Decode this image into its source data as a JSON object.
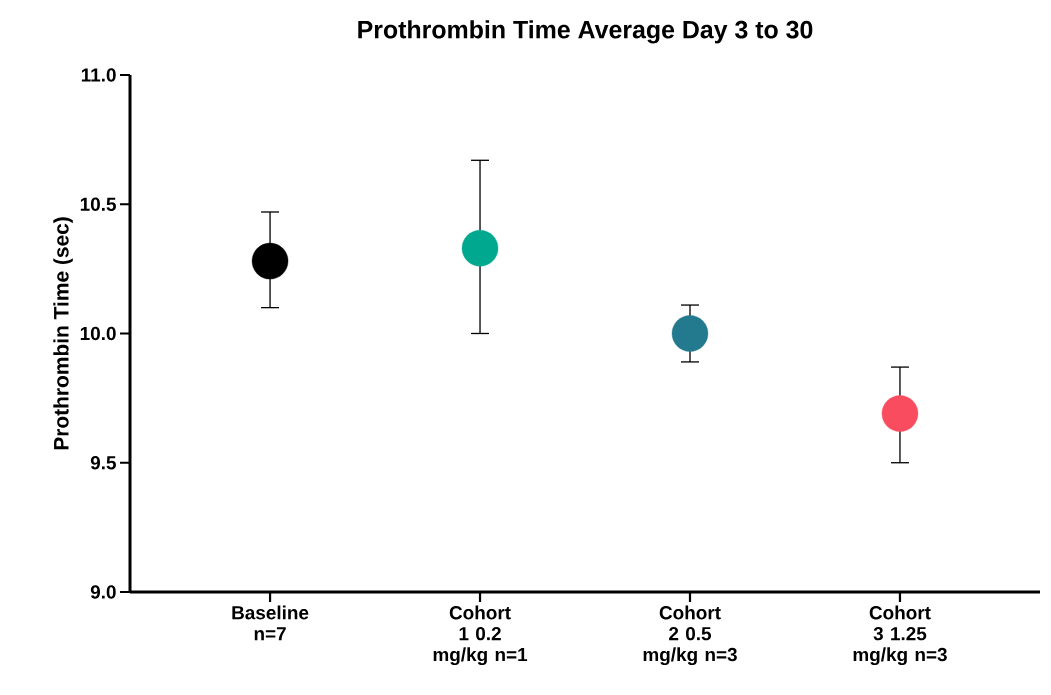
{
  "chart_data": {
    "type": "scatter",
    "title": "Prothrombin Time Average Day 3 to 30",
    "ylabel": "Prothrombin Time (sec)",
    "categories": [
      "Baseline n=7",
      "Cohort 1 0.2 mg/kg n=1",
      "Cohort 2 0.5 mg/kg n=3",
      "Cohort 3 1.25 mg/kg n=3"
    ],
    "values": [
      10.28,
      10.33,
      10.0,
      9.69
    ],
    "errors": [
      [
        10.1,
        10.47
      ],
      [
        10.0,
        10.67
      ],
      [
        9.89,
        10.11
      ],
      [
        9.5,
        9.87
      ]
    ],
    "colors": [
      "#000000",
      "#00a88f",
      "#237a8f",
      "#f94c5e"
    ],
    "ylim": [
      9,
      11
    ],
    "yticks": [
      {
        "value": 9,
        "label": "9.0"
      },
      {
        "value": 9.5,
        "label": "9.5"
      },
      {
        "value": 10,
        "label": "10.0"
      },
      {
        "value": 10.5,
        "label": "10.5"
      },
      {
        "value": 11,
        "label": "11.0"
      }
    ],
    "grid": false,
    "legend": false
  }
}
